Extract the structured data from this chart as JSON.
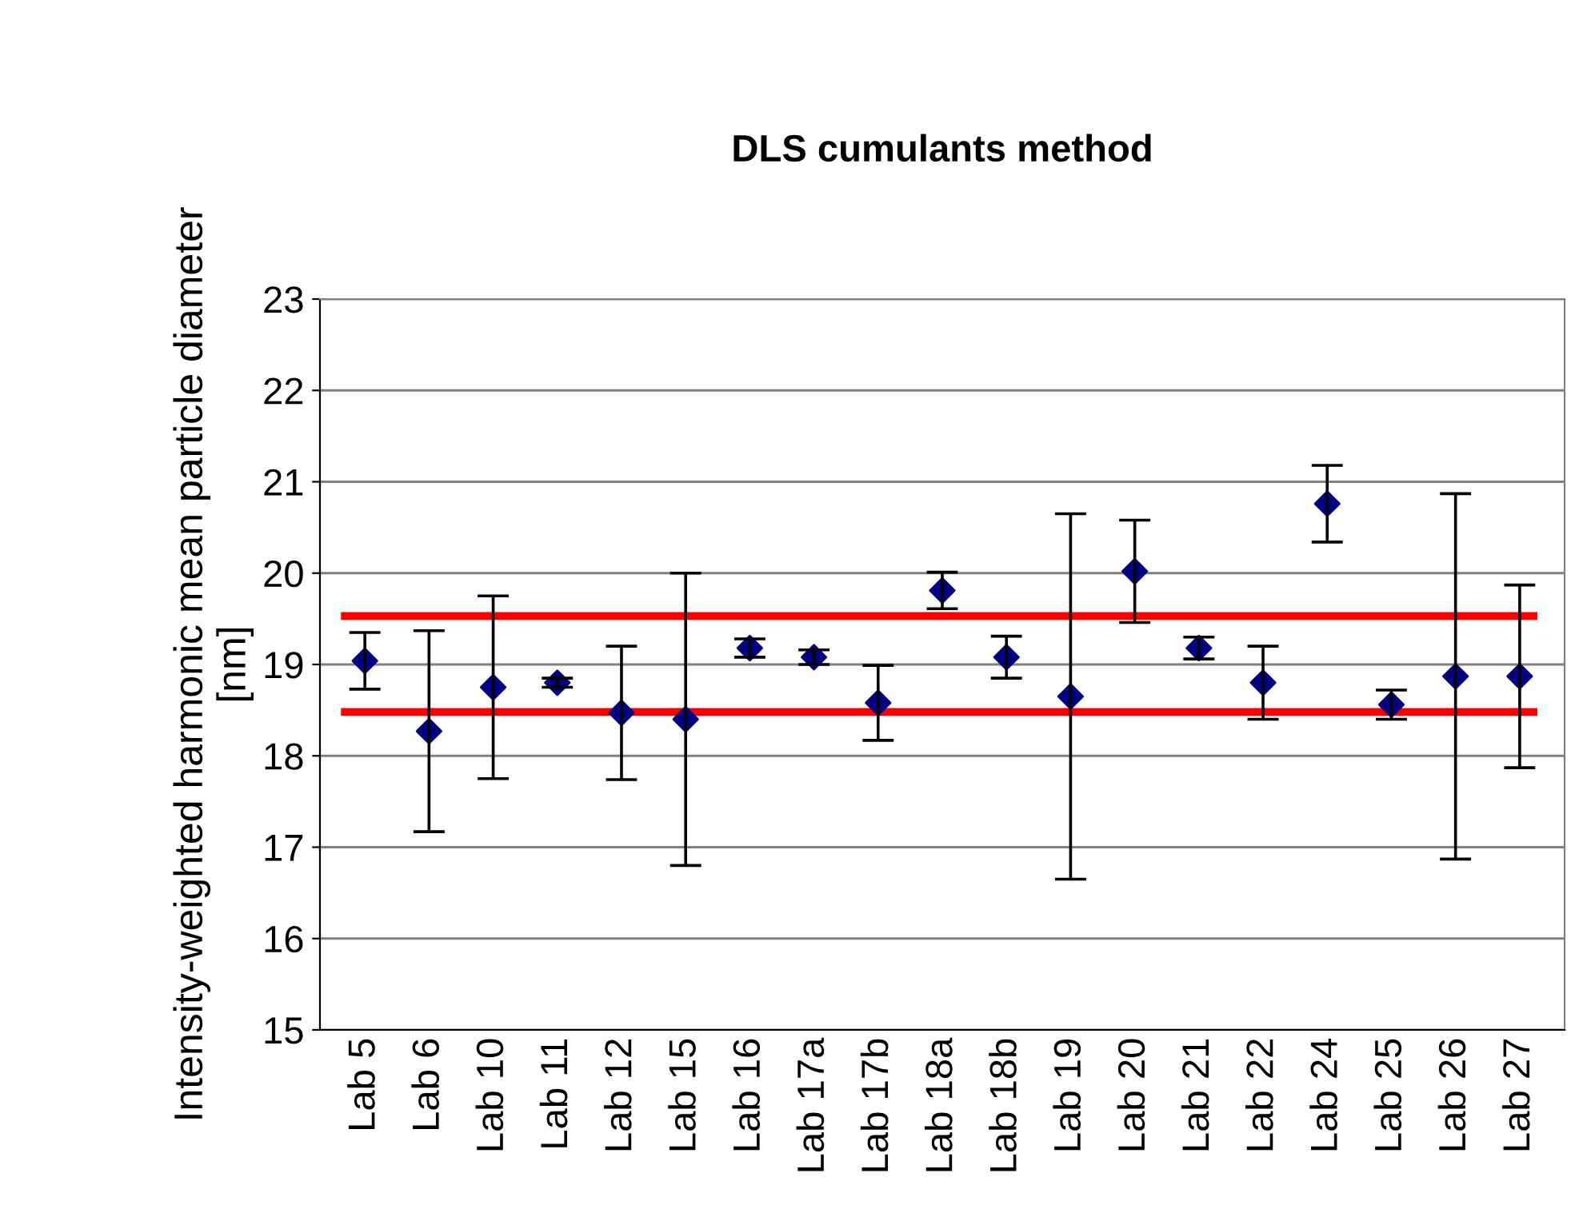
{
  "chart_data": {
    "type": "scatter",
    "title": "DLS cumulants method",
    "ylabel": "Intensity-weighted harmonic mean particle diameter\n[nm]",
    "categories": [
      "Lab 5",
      "Lab 6",
      "Lab 10",
      "Lab 11",
      "Lab 12",
      "Lab 15",
      "Lab 16",
      "Lab 17a",
      "Lab 17b",
      "Lab 18a",
      "Lab 18b",
      "Lab 19",
      "Lab 20",
      "Lab 21",
      "Lab 22",
      "Lab 24",
      "Lab 25",
      "Lab 26",
      "Lab 27"
    ],
    "values": [
      19.04,
      18.27,
      18.75,
      18.8,
      18.47,
      18.4,
      19.18,
      19.08,
      18.58,
      19.81,
      19.08,
      18.65,
      20.02,
      19.18,
      18.8,
      20.76,
      18.56,
      18.87,
      18.87
    ],
    "errors": [
      0.31,
      1.1,
      1.0,
      0.05,
      0.73,
      1.6,
      0.1,
      0.08,
      0.41,
      0.2,
      0.23,
      2.0,
      0.56,
      0.12,
      0.4,
      0.42,
      0.16,
      2.0,
      1.0
    ],
    "color": "#000080",
    "marker": "diamond",
    "ylim": [
      15,
      23
    ],
    "yticks": [
      15,
      16,
      17,
      18,
      19,
      20,
      21,
      22,
      23
    ],
    "grid": "y",
    "legend": false,
    "ref_lines": [
      {
        "axis": "y",
        "value": 19.53,
        "color": "#ff0000"
      },
      {
        "axis": "y",
        "value": 18.48,
        "color": "#ff0000"
      }
    ]
  }
}
